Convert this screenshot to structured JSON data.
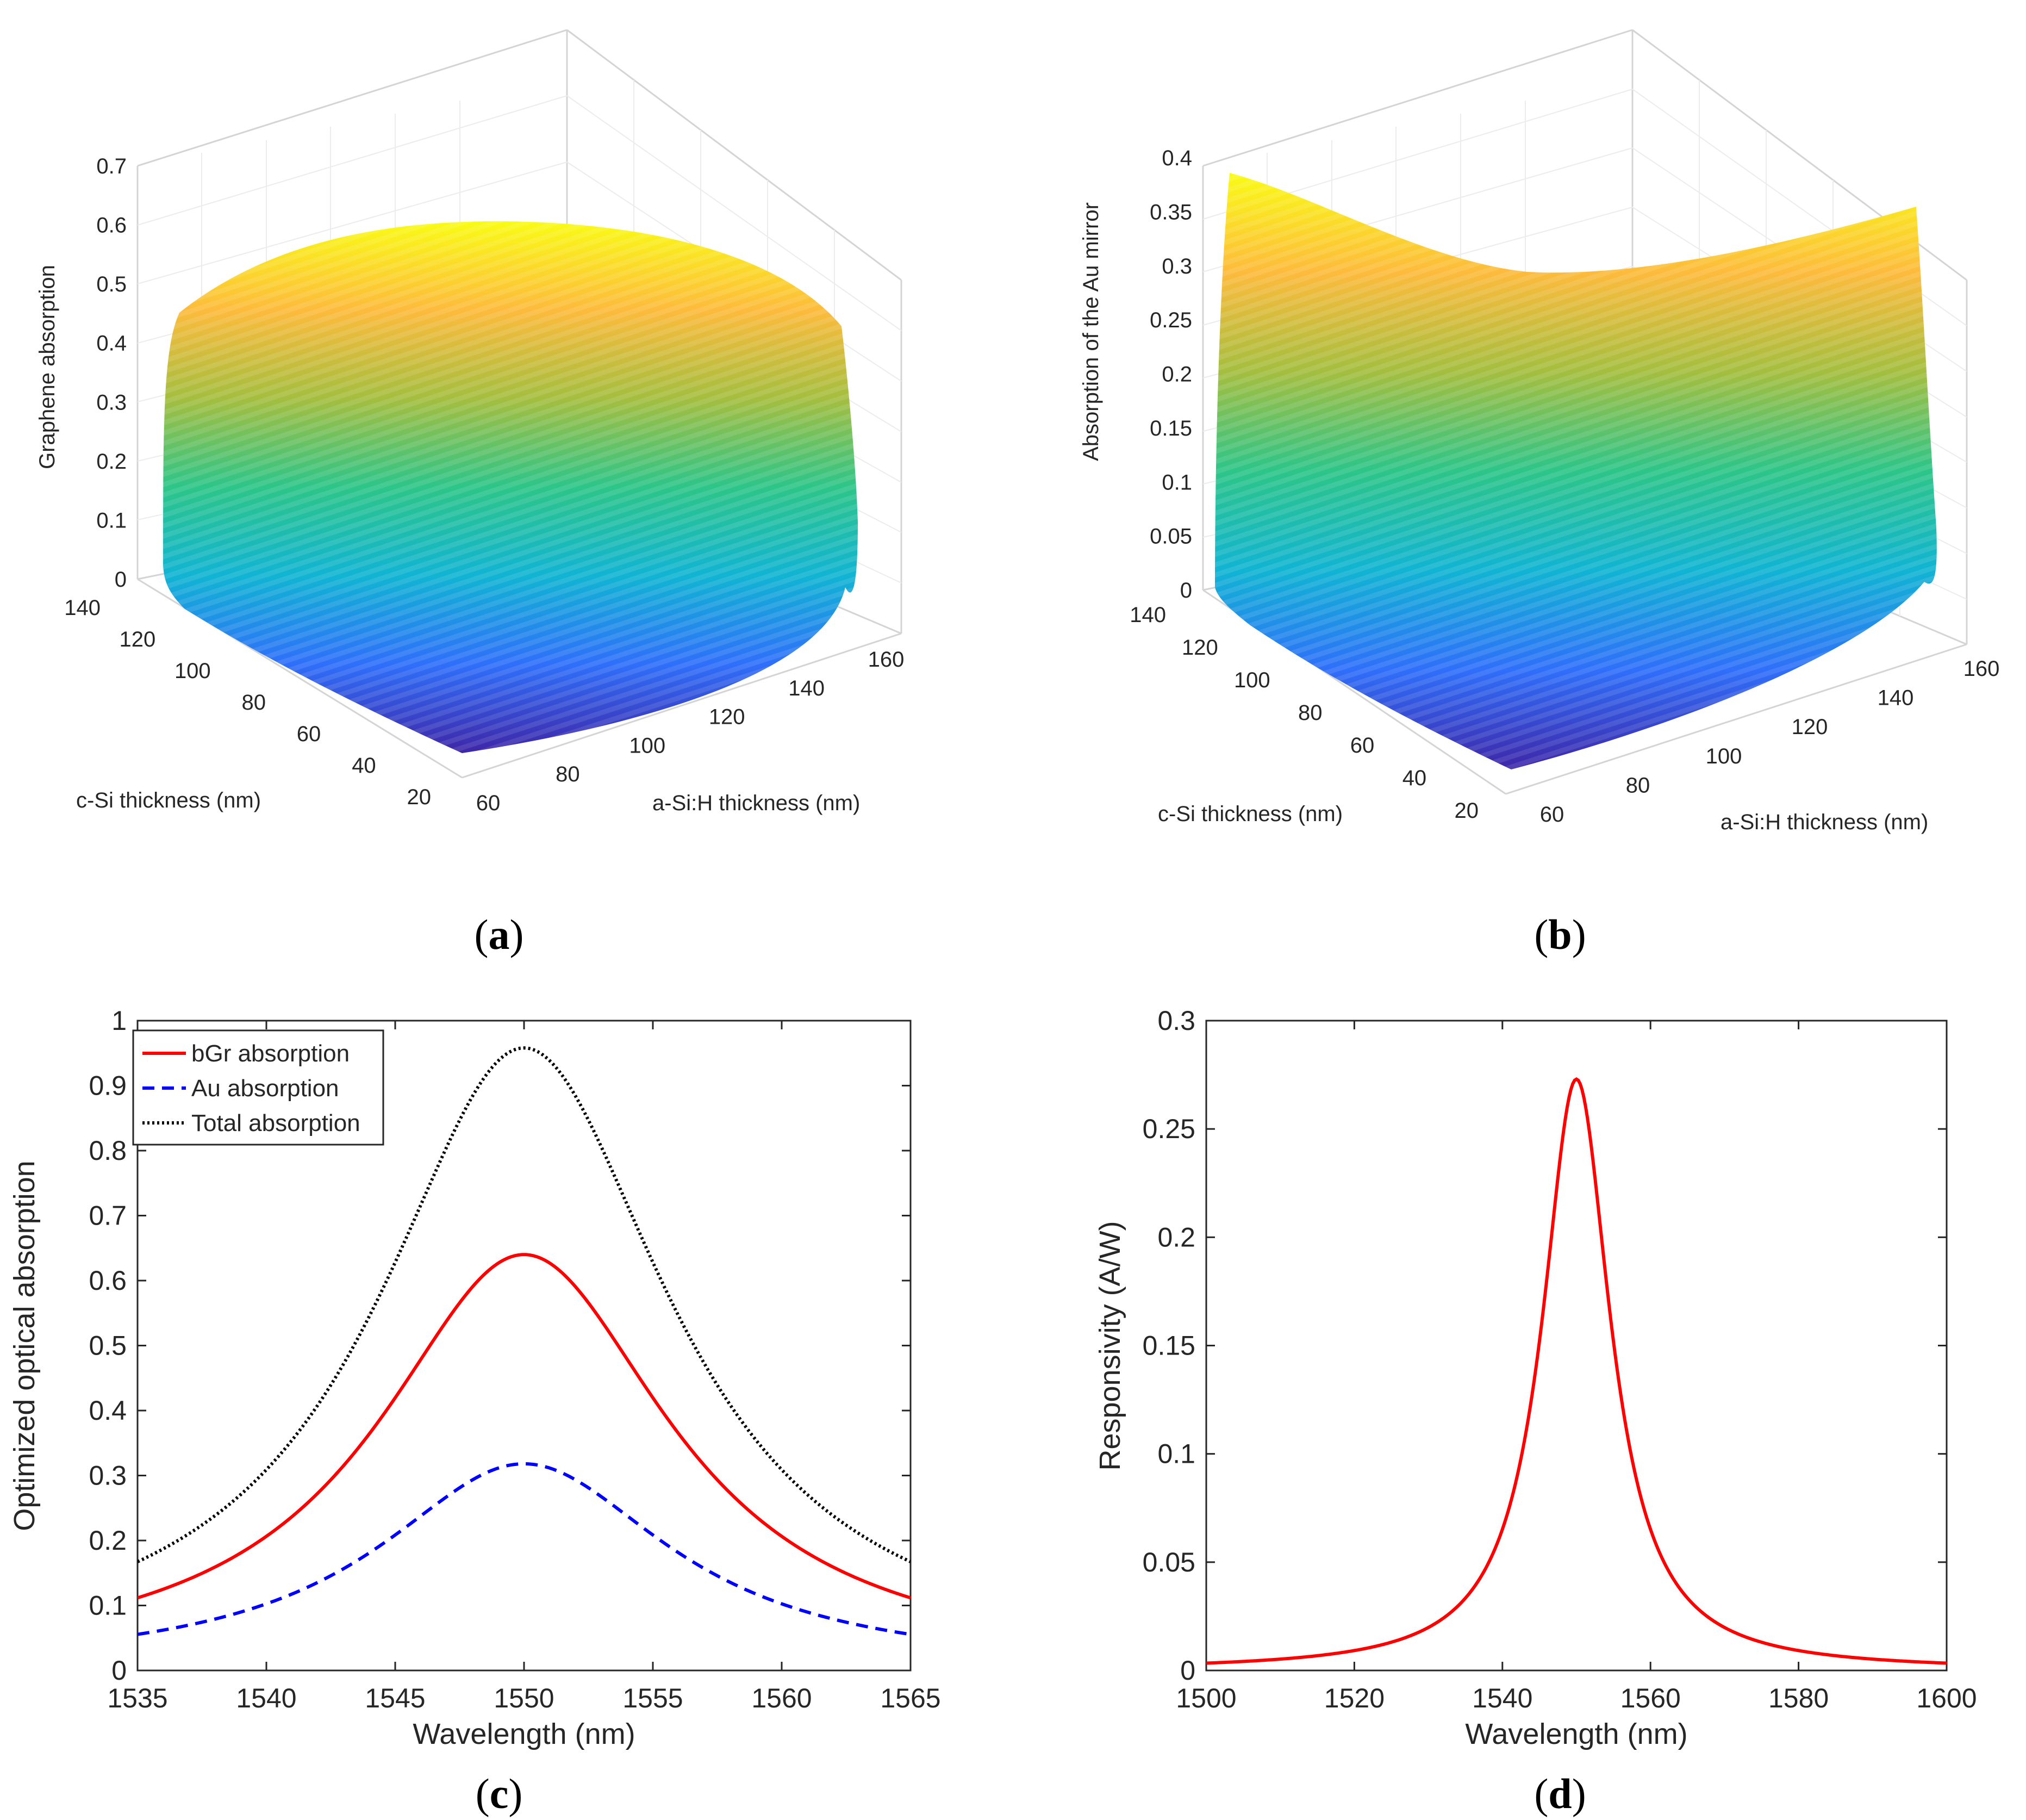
{
  "panels": {
    "a": "(a)",
    "b": "(b)",
    "c": "(c)",
    "d": "(d)"
  },
  "chart_data": [
    {
      "id": "a",
      "type": "surface3d",
      "title": "",
      "zlabel": "Graphene absorption",
      "xlabel": "c-Si thickness (nm)",
      "ylabel": "a-Si:H thickness (nm)",
      "x_ticks": [
        "20",
        "40",
        "60",
        "80",
        "100",
        "120",
        "140"
      ],
      "y_ticks": [
        "60",
        "80",
        "100",
        "120",
        "140",
        "160"
      ],
      "z_ticks": [
        "0",
        "0.1",
        "0.2",
        "0.3",
        "0.4",
        "0.5",
        "0.6",
        "0.7"
      ],
      "xlim": [
        20,
        140
      ],
      "ylim": [
        60,
        160
      ],
      "zlim": [
        0,
        0.7
      ],
      "peak_value": 0.64,
      "colormap": [
        "#3e26a8",
        "#2f6ffa",
        "#11b4d3",
        "#2dc589",
        "#a5be3f",
        "#fdbb3c",
        "#f9fb15"
      ]
    },
    {
      "id": "b",
      "type": "surface3d",
      "title": "",
      "zlabel": "Absorption of the Au mirror",
      "xlabel": "c-Si thickness (nm)",
      "ylabel": "a-Si:H thickness (nm)",
      "x_ticks": [
        "20",
        "40",
        "60",
        "80",
        "100",
        "120",
        "140"
      ],
      "y_ticks": [
        "60",
        "80",
        "100",
        "120",
        "140",
        "160"
      ],
      "z_ticks": [
        "0",
        "0.05",
        "0.1",
        "0.15",
        "0.2",
        "0.25",
        "0.3",
        "0.35",
        "0.4"
      ],
      "xlim": [
        20,
        140
      ],
      "ylim": [
        60,
        160
      ],
      "zlim": [
        0,
        0.4
      ],
      "corner_max": 0.39,
      "colormap": [
        "#3e26a8",
        "#2f6ffa",
        "#11b4d3",
        "#2dc589",
        "#a5be3f",
        "#fdbb3c",
        "#f9fb15"
      ]
    },
    {
      "id": "c",
      "type": "line",
      "title": "",
      "xlabel": "Wavelength (nm)",
      "ylabel": "Optimized optical absorption",
      "xlim": [
        1535,
        1565
      ],
      "ylim": [
        0,
        1
      ],
      "x_ticks": [
        1535,
        1540,
        1545,
        1550,
        1555,
        1560,
        1565
      ],
      "y_ticks": [
        0,
        0.1,
        0.2,
        0.3,
        0.4,
        0.5,
        0.6,
        0.7,
        0.8,
        0.9,
        1
      ],
      "legend_position": "top-left",
      "series": [
        {
          "name": "bGr absorption",
          "color": "#ff0000",
          "style": "solid",
          "peak": 0.64,
          "center": 1550,
          "hwhm": 6.9
        },
        {
          "name": "Au absorption",
          "color": "#0000ff",
          "style": "dashed",
          "peak": 0.318,
          "center": 1550,
          "hwhm": 6.9
        },
        {
          "name": "Total absorption",
          "color": "#000000",
          "style": "dotted",
          "peak": 0.958,
          "center": 1550,
          "hwhm": 6.9
        }
      ]
    },
    {
      "id": "d",
      "type": "line",
      "title": "",
      "xlabel": "Wavelength (nm)",
      "ylabel": "Responsivity (A/W)",
      "xlim": [
        1500,
        1600
      ],
      "ylim": [
        0,
        0.3
      ],
      "x_ticks": [
        1500,
        1520,
        1540,
        1560,
        1580,
        1600
      ],
      "y_ticks": [
        0,
        0.05,
        0.1,
        0.15,
        0.2,
        0.25,
        0.3
      ],
      "series": [
        {
          "name": "Responsivity",
          "color": "#ff0000",
          "style": "solid",
          "peak": 0.273,
          "center": 1550,
          "hwhm": 5.6
        }
      ]
    }
  ]
}
